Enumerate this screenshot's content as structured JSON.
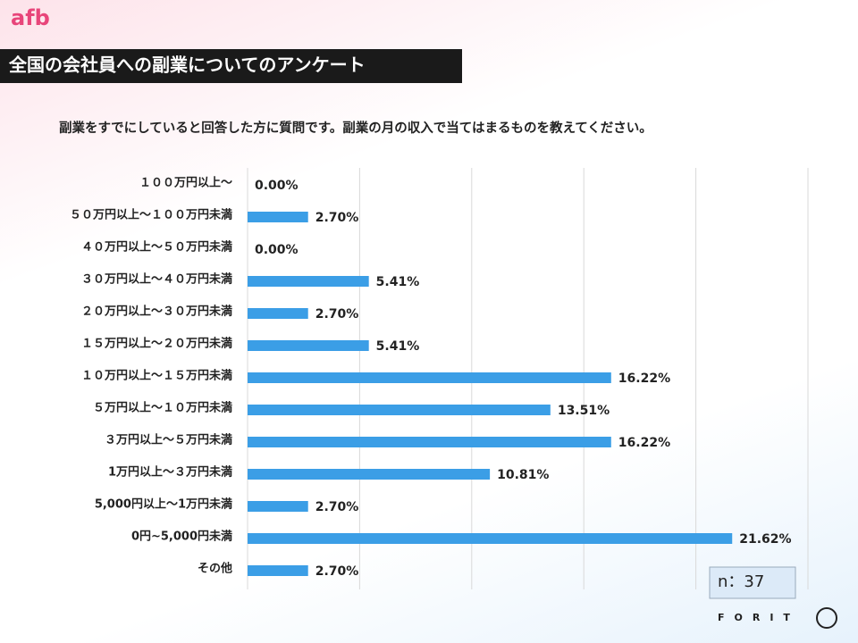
{
  "header": {
    "logo": "afb"
  },
  "chart_data": {
    "type": "bar",
    "orientation": "horizontal",
    "title": "全国の会社員への副業についてのアンケート",
    "subtitle": "副業をすでにしていると回答した方に質問です。副業の月の収入で当てはまるものを教えてください。",
    "categories": [
      "１００万円以上～",
      "５０万円以上～１００万円未満",
      "４０万円以上～５０万円未満",
      "３０万円以上～４０万円未満",
      "２０万円以上～３０万円未満",
      "１５万円以上～２０万円未満",
      "１０万円以上～１５万円未満",
      "５万円以上～１０万円未満",
      "３万円以上～５万円未満",
      "1万円以上～３万円未満",
      "5,000円以上～1万円未満",
      "0円~5,000円未満",
      "その他"
    ],
    "values": [
      0.0,
      2.7,
      0.0,
      5.41,
      2.7,
      5.41,
      16.22,
      13.51,
      16.22,
      10.81,
      2.7,
      21.62,
      2.7
    ],
    "value_labels": [
      "0.00%",
      "2.70%",
      "0.00%",
      "5.41%",
      "2.70%",
      "5.41%",
      "16.22%",
      "13.51%",
      "16.22%",
      "10.81%",
      "2.70%",
      "21.62%",
      "2.70%"
    ],
    "color": "#3b9ee6",
    "xlim": [
      0,
      25
    ],
    "xticks": [
      0,
      5,
      10,
      15,
      20,
      25
    ],
    "grid": true,
    "annotation": "n：37"
  },
  "footer": {
    "logo": "FORIT"
  }
}
